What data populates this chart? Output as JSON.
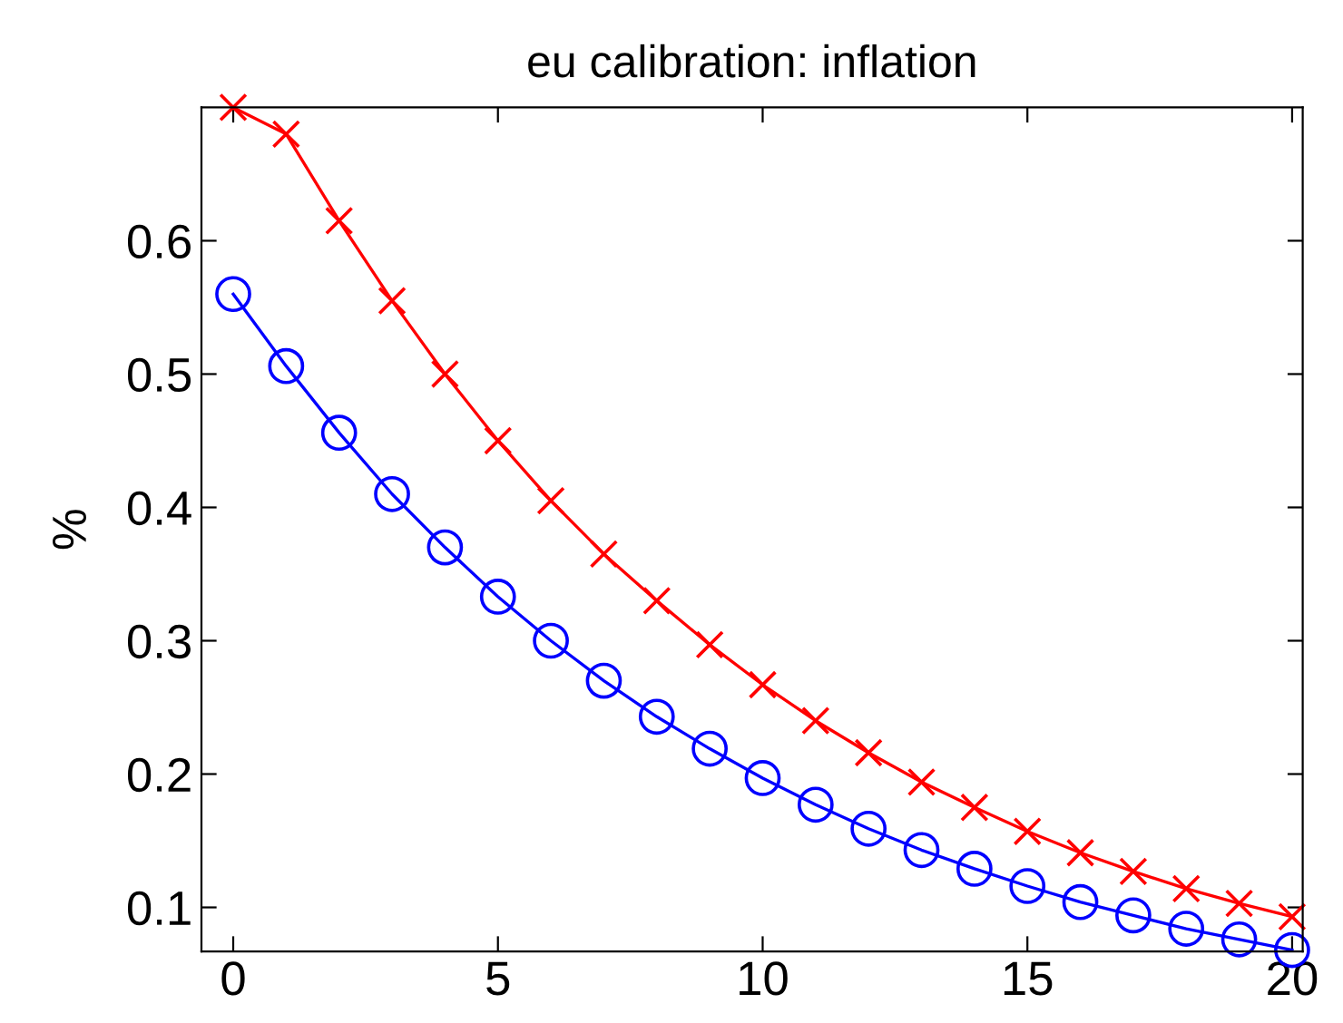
{
  "chart_data": {
    "type": "line",
    "title": "eu calibration: inflation",
    "ylabel": "%",
    "x": [
      0,
      1,
      2,
      3,
      4,
      5,
      6,
      7,
      8,
      9,
      10,
      11,
      12,
      13,
      14,
      15,
      16,
      17,
      18,
      19,
      20
    ],
    "series": [
      {
        "color": "#ff0000",
        "marker": "cross",
        "values": [
          0.7,
          0.68,
          0.615,
          0.555,
          0.5,
          0.45,
          0.405,
          0.365,
          0.33,
          0.297,
          0.267,
          0.24,
          0.216,
          0.194,
          0.175,
          0.157,
          0.141,
          0.127,
          0.114,
          0.103,
          0.093
        ]
      },
      {
        "color": "#0000ff",
        "marker": "circle",
        "values": [
          0.56,
          0.506,
          0.456,
          0.41,
          0.37,
          0.333,
          0.3,
          0.27,
          0.243,
          0.219,
          0.197,
          0.177,
          0.159,
          0.143,
          0.129,
          0.116,
          0.104,
          0.094,
          0.084,
          0.076,
          0.068
        ]
      }
    ],
    "xlim": [
      -0.6,
      20.2
    ],
    "ylim": [
      0.067,
      0.7
    ],
    "xticks": [
      0,
      5,
      10,
      15,
      20
    ],
    "yticks": [
      0.1,
      0.2,
      0.3,
      0.4,
      0.5,
      0.6
    ],
    "grid": false,
    "legend": false,
    "line_style": "solid"
  }
}
